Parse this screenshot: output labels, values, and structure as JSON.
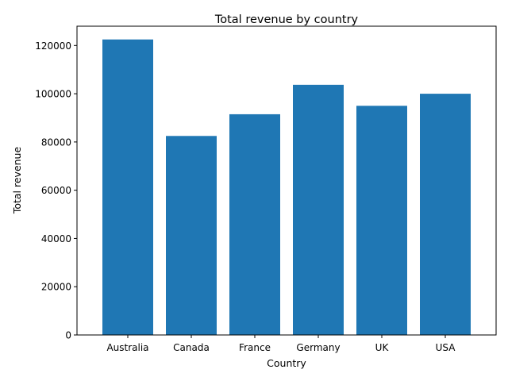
{
  "chart_data": {
    "type": "bar",
    "title": "Total revenue by country",
    "xlabel": "Country",
    "ylabel": "Total revenue",
    "categories": [
      "Australia",
      "Canada",
      "France",
      "Germany",
      "UK",
      "USA"
    ],
    "values": [
      122500,
      82500,
      91500,
      103700,
      95000,
      100000
    ],
    "ylim": [
      0,
      128000
    ],
    "yticks": [
      0,
      20000,
      40000,
      60000,
      80000,
      100000,
      120000
    ],
    "grid": false,
    "legend": "none",
    "bar_color": "#1f77b4"
  }
}
